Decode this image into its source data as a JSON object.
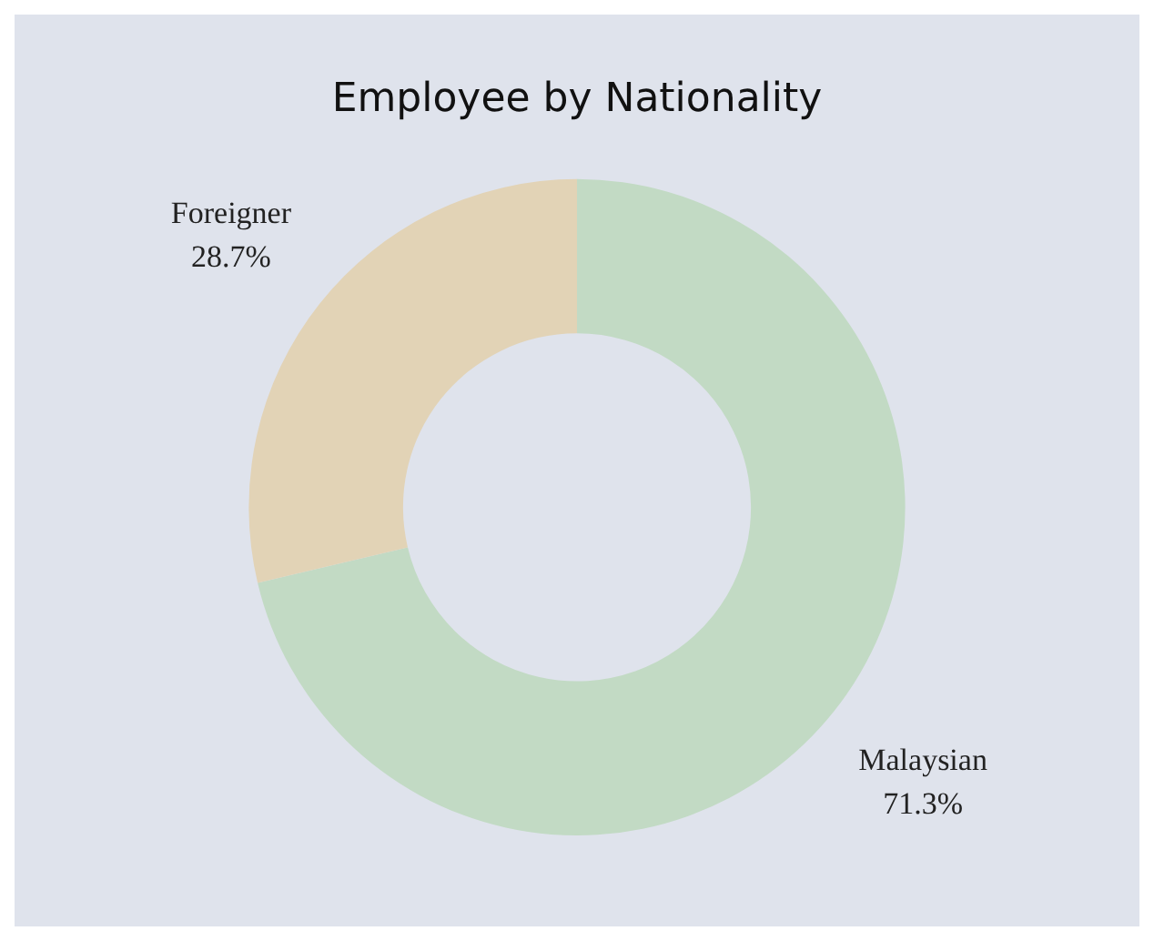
{
  "chart_data": {
    "type": "donut",
    "title": "Employee by Nationality",
    "categories": [
      "Malaysian",
      "Foreigner"
    ],
    "values": [
      71.3,
      28.7
    ],
    "colors": [
      "#c2dac4",
      "#e2d3b6"
    ],
    "value_labels": [
      "71.3%",
      "28.7%"
    ],
    "legend": false
  }
}
